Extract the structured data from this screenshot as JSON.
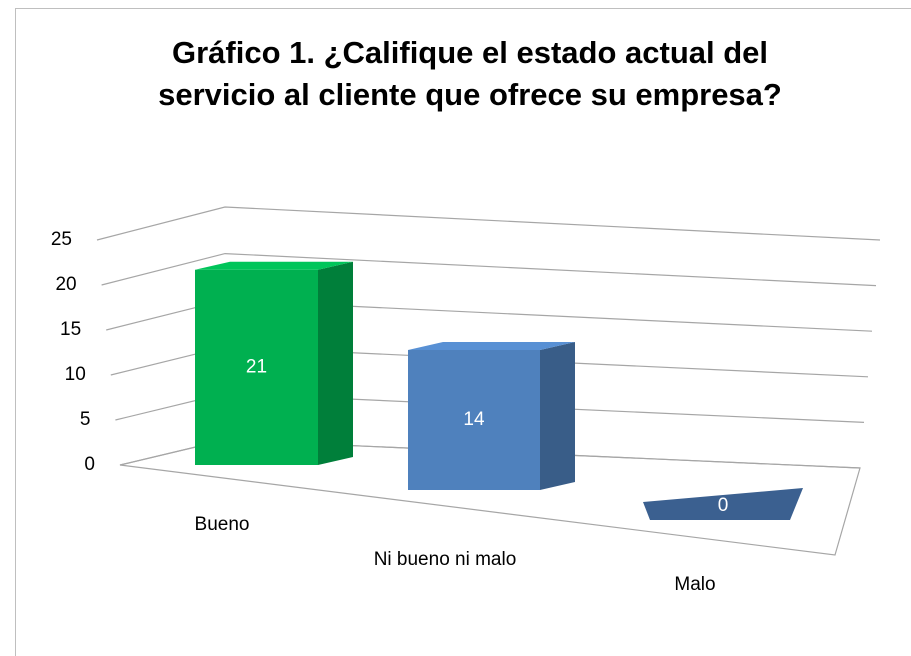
{
  "chart_data": {
    "type": "bar3d",
    "title": "Gráfico 1. ¿Califique el estado actual del servicio al cliente que ofrece su empresa?",
    "categories": [
      "Bueno",
      "Ni bueno ni malo",
      "Malo"
    ],
    "values": [
      21,
      14,
      0
    ],
    "colors": [
      "#00b050",
      "#4f81bd",
      "#3b6090"
    ],
    "ylim": [
      0,
      25
    ],
    "yticks": [
      0,
      5,
      10,
      15,
      20,
      25
    ],
    "grid": true
  }
}
